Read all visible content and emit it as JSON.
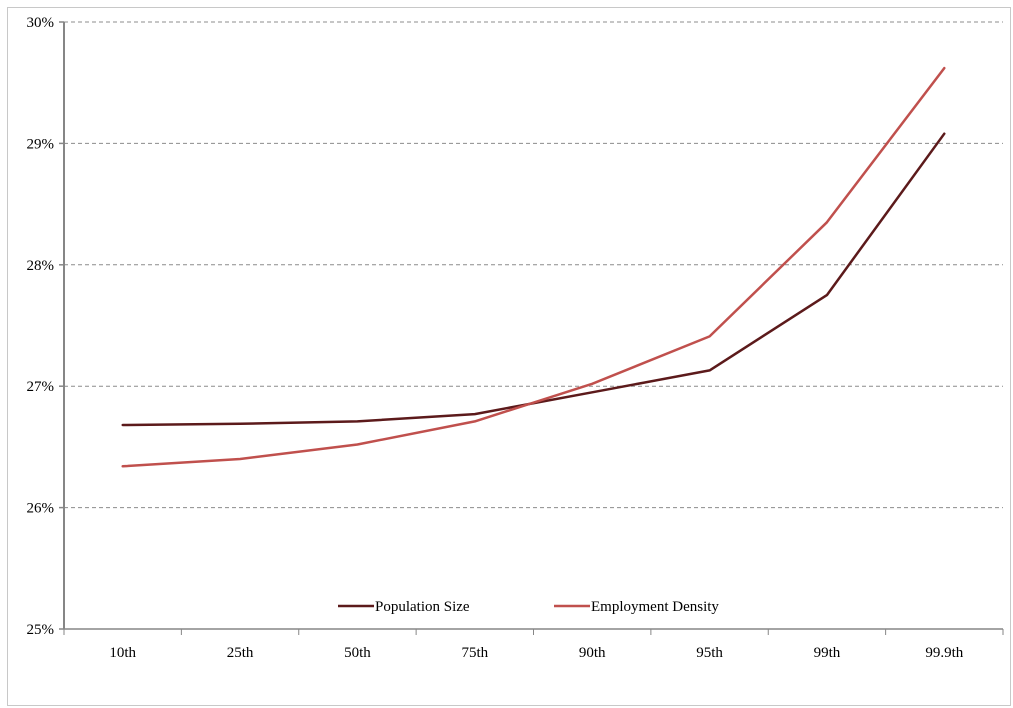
{
  "chart_data": {
    "type": "line",
    "title": "",
    "xlabel": "",
    "ylabel": "",
    "categories": [
      "10th",
      "25th",
      "50th",
      "75th",
      "90th",
      "95th",
      "99th",
      "99.9th"
    ],
    "series": [
      {
        "name": "Population Size",
        "color": "#5c1a1b",
        "values": [
          26.68,
          26.69,
          26.71,
          26.77,
          26.95,
          27.13,
          27.75,
          29.08
        ]
      },
      {
        "name": "Employment Density",
        "color": "#c0504d",
        "values": [
          26.34,
          26.4,
          26.52,
          26.71,
          27.02,
          27.41,
          28.35,
          29.62
        ]
      }
    ],
    "ylim": [
      25,
      30
    ],
    "yticks": [
      25,
      26,
      27,
      28,
      29,
      30
    ],
    "ytick_labels": [
      "25%",
      "26%",
      "27%",
      "28%",
      "29%",
      "30%"
    ],
    "grid": true,
    "legend_position": "bottom-center"
  }
}
